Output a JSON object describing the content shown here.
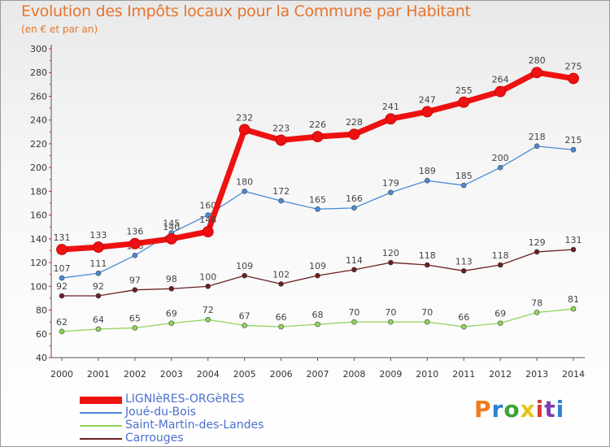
{
  "chart_data": {
    "type": "line",
    "title": "Evolution des Impôts locaux pour la Commune par Habitant",
    "subtitle": "(en € et par an)",
    "x": [
      "2000",
      "2001",
      "2002",
      "2003",
      "2004",
      "2005",
      "2006",
      "2007",
      "2008",
      "2009",
      "2010",
      "2011",
      "2012",
      "2013",
      "2014"
    ],
    "ylim": [
      40,
      300
    ],
    "yticks": [
      40,
      60,
      80,
      100,
      120,
      140,
      160,
      180,
      200,
      220,
      240,
      260,
      280,
      300
    ],
    "grid": false,
    "legend_position": "bottom-left",
    "series": [
      {
        "name": "Carrouges",
        "color": "#6b1f1f",
        "values": [
          92,
          92,
          97,
          98,
          100,
          109,
          102,
          109,
          114,
          120,
          118,
          113,
          118,
          129,
          131
        ]
      },
      {
        "name": "Saint-Martin-des-Landes",
        "color": "#8fd45a",
        "values": [
          62,
          64,
          65,
          69,
          72,
          67,
          66,
          68,
          70,
          70,
          70,
          66,
          69,
          78,
          81
        ]
      },
      {
        "name": "Joué-du-Bois",
        "color": "#4a8ad6",
        "values": [
          107,
          111,
          126,
          145,
          160,
          180,
          172,
          165,
          166,
          179,
          189,
          185,
          200,
          218,
          215
        ]
      },
      {
        "name": "LIGNIèRES-ORGèRES",
        "color": "#ee1111",
        "values": [
          131,
          133,
          136,
          140,
          146,
          232,
          223,
          226,
          228,
          241,
          247,
          255,
          264,
          280,
          275
        ]
      }
    ]
  },
  "legend": [
    {
      "label": "LIGNIèRES-ORGèRES",
      "color": "#ee1111"
    },
    {
      "label": "Joué-du-Bois",
      "color": "#4a8ad6"
    },
    {
      "label": "Saint-Martin-des-Landes",
      "color": "#8fd45a"
    },
    {
      "label": "Carrouges",
      "color": "#6b1f1f"
    }
  ],
  "logo": {
    "text": "Proxiti",
    "letter_colors": [
      "#f07a1c",
      "#2f7fd6",
      "#3aa43a",
      "#e8c21a",
      "#d63a3a",
      "#7a3fb0",
      "#2f7fd6"
    ]
  }
}
